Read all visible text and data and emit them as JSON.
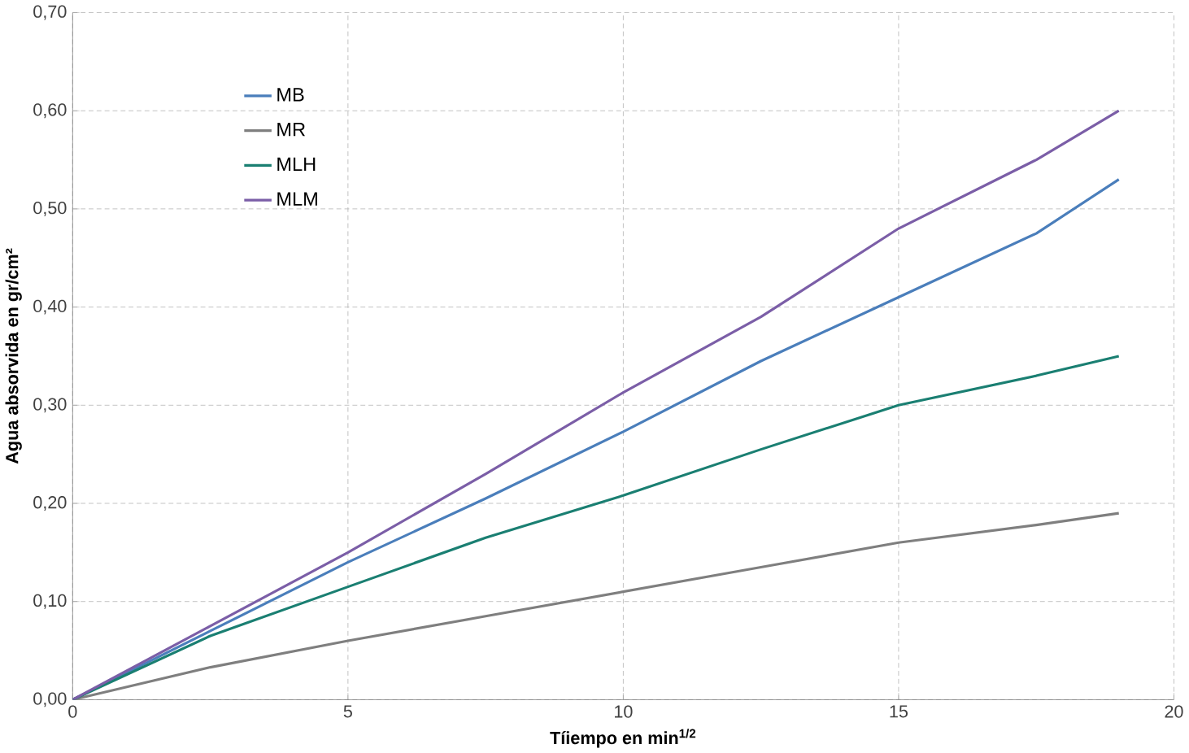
{
  "chart_data": {
    "type": "line",
    "xlabel": "Tíiempo en min$^{1/2}$",
    "ylabel": "Agua absorvida en gr/cm²",
    "x": [
      0,
      2.5,
      5,
      7.5,
      10,
      12.5,
      15,
      17.5,
      19
    ],
    "series": [
      {
        "name": "MB",
        "color": "#4a7ebb",
        "values": [
          0,
          0.07,
          0.14,
          0.205,
          0.273,
          0.345,
          0.41,
          0.475,
          0.53
        ]
      },
      {
        "name": "MR",
        "color": "#7f7f7f",
        "values": [
          0,
          0.033,
          0.06,
          0.085,
          0.11,
          0.135,
          0.16,
          0.178,
          0.19
        ]
      },
      {
        "name": "MLH",
        "color": "#1a7f72",
        "values": [
          0,
          0.065,
          0.115,
          0.165,
          0.208,
          0.255,
          0.3,
          0.33,
          0.35
        ]
      },
      {
        "name": "MLM",
        "color": "#7b5ea7",
        "values": [
          0,
          0.075,
          0.15,
          0.23,
          0.313,
          0.39,
          0.48,
          0.55,
          0.6
        ]
      }
    ],
    "xlim": [
      0,
      20
    ],
    "xticks": [
      0,
      5,
      10,
      15,
      20
    ],
    "ylim": [
      0,
      0.7
    ],
    "yticks": [
      {
        "value": 0,
        "label": "0,00"
      },
      {
        "value": 0.1,
        "label": "0,10"
      },
      {
        "value": 0.2,
        "label": "0,20"
      },
      {
        "value": 0.3,
        "label": "0,30"
      },
      {
        "value": 0.4,
        "label": "0,40"
      },
      {
        "value": 0.5,
        "label": "0,50"
      },
      {
        "value": 0.6,
        "label": "0,60"
      },
      {
        "value": 0.7,
        "label": "0,70"
      }
    ],
    "grid": true,
    "legend": "top left",
    "marker": "none",
    "line_style": "solid"
  }
}
